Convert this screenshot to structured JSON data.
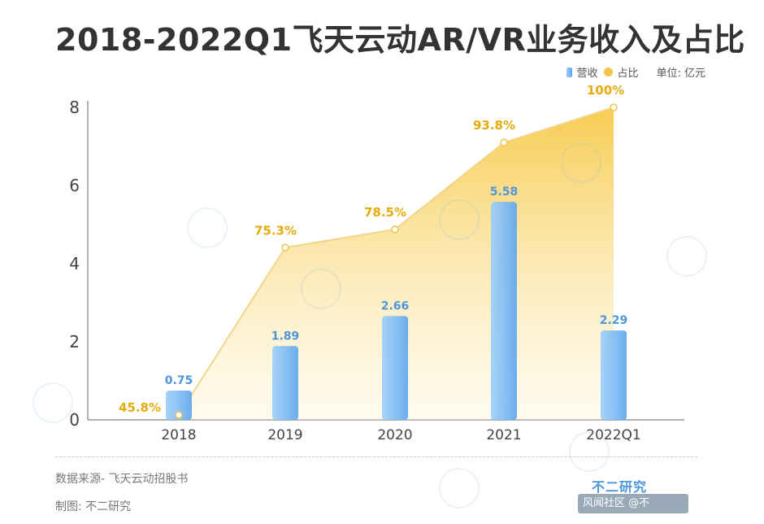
{
  "title": "2018-2022Q1飞天云动AR/VR业务收入及占比",
  "legend": {
    "bar_label": "营收",
    "line_label": "占比",
    "unit": "单位: 亿元"
  },
  "footer": {
    "source": "数据来源- 飞天云动招股书",
    "maker": "制图: 不二研究",
    "brand": "不二研究",
    "watermark_text": "风闻社区 @不"
  },
  "colors": {
    "bar": "#74b6f5",
    "line": "#f4c44a",
    "area_top": "#f7cf5a",
    "label_bar": "#4f95db",
    "label_line": "#e6ac0e"
  },
  "chart_data": {
    "type": "bar",
    "categories": [
      "2018",
      "2019",
      "2020",
      "2021",
      "2022Q1"
    ],
    "series": [
      {
        "name": "营收",
        "type": "bar",
        "values": [
          0.75,
          1.89,
          2.66,
          5.58,
          2.29
        ],
        "labels": [
          "0.75",
          "1.89",
          "2.66",
          "5.58",
          "2.29"
        ]
      },
      {
        "name": "占比",
        "type": "area",
        "values": [
          45.8,
          75.3,
          78.5,
          93.8,
          100
        ],
        "labels": [
          "45.8%",
          "75.3%",
          "78.5%",
          "93.8%",
          "100%"
        ]
      }
    ],
    "yticks": [
      "0",
      "2",
      "4",
      "6",
      "8"
    ],
    "ylim": [
      0,
      8
    ],
    "secondary_ylim": [
      45.8,
      100
    ],
    "grid": false
  }
}
